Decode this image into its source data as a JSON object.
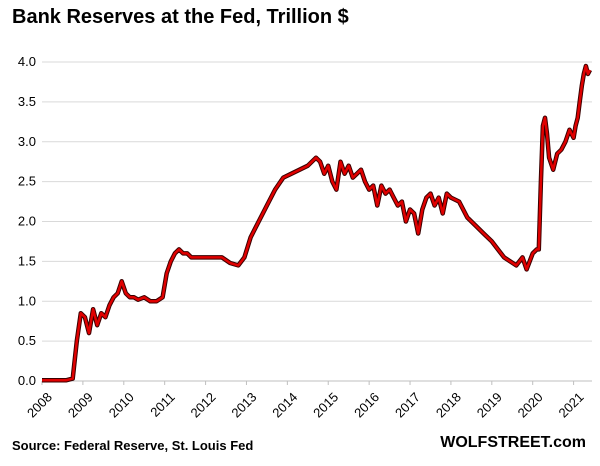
{
  "chart_data": {
    "type": "line",
    "title": "Bank Reserves at the Fed, Trillion $",
    "xlabel": "",
    "ylabel": "",
    "xlim": [
      2008,
      2021.45
    ],
    "ylim": [
      0,
      4.0
    ],
    "yticks": [
      "0.0",
      "0.5",
      "1.0",
      "1.5",
      "2.0",
      "2.5",
      "3.0",
      "3.5",
      "4.0"
    ],
    "xticks": [
      "2008",
      "2009",
      "2010",
      "2011",
      "2012",
      "2013",
      "2014",
      "2015",
      "2016",
      "2017",
      "2018",
      "2019",
      "2020",
      "2021"
    ],
    "grid": true,
    "series": [
      {
        "name": "Bank Reserves",
        "color": "#e00000",
        "x": [
          2008.0,
          2008.6,
          2008.75,
          2008.85,
          2008.95,
          2009.05,
          2009.15,
          2009.25,
          2009.35,
          2009.45,
          2009.55,
          2009.65,
          2009.75,
          2009.85,
          2009.95,
          2010.05,
          2010.15,
          2010.25,
          2010.35,
          2010.5,
          2010.65,
          2010.8,
          2010.95,
          2011.05,
          2011.15,
          2011.25,
          2011.35,
          2011.45,
          2011.55,
          2011.65,
          2011.8,
          2012.0,
          2012.2,
          2012.4,
          2012.6,
          2012.8,
          2012.95,
          2013.1,
          2013.3,
          2013.5,
          2013.7,
          2013.9,
          2014.1,
          2014.3,
          2014.5,
          2014.6,
          2014.7,
          2014.8,
          2014.9,
          2015.0,
          2015.1,
          2015.2,
          2015.3,
          2015.4,
          2015.5,
          2015.6,
          2015.7,
          2015.8,
          2015.9,
          2016.0,
          2016.1,
          2016.2,
          2016.3,
          2016.4,
          2016.5,
          2016.6,
          2016.7,
          2016.8,
          2016.9,
          2017.0,
          2017.1,
          2017.2,
          2017.3,
          2017.4,
          2017.5,
          2017.6,
          2017.7,
          2017.8,
          2017.9,
          2018.0,
          2018.2,
          2018.4,
          2018.6,
          2018.8,
          2019.0,
          2019.15,
          2019.3,
          2019.45,
          2019.6,
          2019.75,
          2019.85,
          2020.0,
          2020.1,
          2020.15,
          2020.2,
          2020.25,
          2020.3,
          2020.35,
          2020.4,
          2020.5,
          2020.6,
          2020.7,
          2020.8,
          2020.9,
          2021.0,
          2021.05,
          2021.1,
          2021.15,
          2021.2,
          2021.25,
          2021.3,
          2021.35,
          2021.4
        ],
        "values": [
          0.01,
          0.01,
          0.03,
          0.5,
          0.85,
          0.8,
          0.6,
          0.9,
          0.7,
          0.85,
          0.8,
          0.95,
          1.05,
          1.1,
          1.25,
          1.1,
          1.05,
          1.05,
          1.02,
          1.05,
          1.0,
          1.0,
          1.05,
          1.35,
          1.5,
          1.6,
          1.65,
          1.6,
          1.6,
          1.55,
          1.55,
          1.55,
          1.55,
          1.55,
          1.48,
          1.45,
          1.55,
          1.8,
          2.0,
          2.2,
          2.4,
          2.55,
          2.6,
          2.65,
          2.7,
          2.75,
          2.8,
          2.75,
          2.6,
          2.7,
          2.5,
          2.4,
          2.75,
          2.6,
          2.7,
          2.55,
          2.6,
          2.65,
          2.5,
          2.4,
          2.45,
          2.2,
          2.45,
          2.35,
          2.4,
          2.3,
          2.2,
          2.25,
          2.0,
          2.15,
          2.1,
          1.85,
          2.15,
          2.3,
          2.35,
          2.2,
          2.3,
          2.1,
          2.35,
          2.3,
          2.25,
          2.05,
          1.95,
          1.85,
          1.75,
          1.65,
          1.55,
          1.5,
          1.45,
          1.55,
          1.4,
          1.6,
          1.65,
          1.65,
          2.5,
          3.2,
          3.3,
          3.1,
          2.8,
          2.65,
          2.85,
          2.9,
          3.0,
          3.15,
          3.05,
          3.2,
          3.3,
          3.5,
          3.7,
          3.85,
          3.95,
          3.85,
          3.9
        ]
      }
    ]
  },
  "footer": {
    "source": "Source: Federal Reserve, St. Louis Fed",
    "brand": "WOLFSTREET.com"
  }
}
